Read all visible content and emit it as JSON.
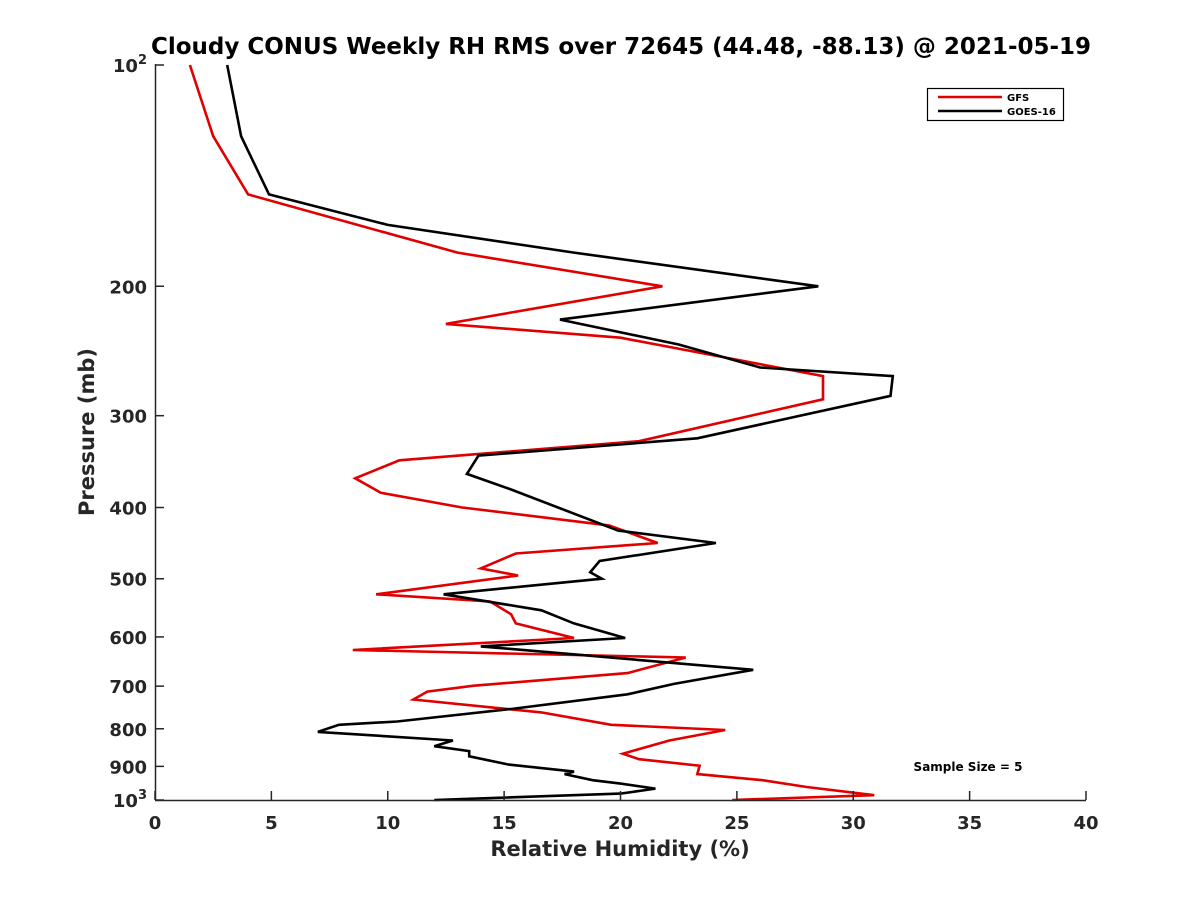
{
  "chart_data": {
    "type": "line",
    "title": "Cloudy CONUS Weekly RH RMS over 72645 (44.48, -88.13) @ 2021-05-19",
    "xlabel": "Relative Humidity (%)",
    "ylabel": "Pressure (mb)",
    "xlim": [
      0,
      40
    ],
    "ylim": [
      100,
      1000
    ],
    "y_scale": "log",
    "y_reversed": true,
    "grid": false,
    "legend_position": "top-right",
    "x_ticks": [
      "0",
      "5",
      "10",
      "15",
      "20",
      "25",
      "30",
      "35",
      "40"
    ],
    "y_ticks": [
      {
        "value": 100,
        "base": "10",
        "exp": "2"
      },
      {
        "value": 200,
        "label": "200"
      },
      {
        "value": 300,
        "label": "300"
      },
      {
        "value": 400,
        "label": "400"
      },
      {
        "value": 500,
        "label": "500"
      },
      {
        "value": 600,
        "label": "600"
      },
      {
        "value": 700,
        "label": "700"
      },
      {
        "value": 800,
        "label": "800"
      },
      {
        "value": 900,
        "label": "900"
      },
      {
        "value": 1000,
        "base": "10",
        "exp": "3"
      }
    ],
    "annotation": "Sample Size = 5",
    "series": [
      {
        "name": "GFS",
        "color": "#e00000",
        "points": [
          [
            1.5,
            100
          ],
          [
            2.5,
            125
          ],
          [
            4.0,
            150
          ],
          [
            8.7,
            165
          ],
          [
            13.0,
            180
          ],
          [
            21.8,
            200
          ],
          [
            12.5,
            225
          ],
          [
            20.0,
            235
          ],
          [
            28.7,
            265
          ],
          [
            28.7,
            285
          ],
          [
            20.8,
            325
          ],
          [
            10.5,
            345
          ],
          [
            8.6,
            365
          ],
          [
            9.7,
            382
          ],
          [
            13.2,
            400
          ],
          [
            19.5,
            423
          ],
          [
            21.6,
            447
          ],
          [
            15.5,
            462
          ],
          [
            14.0,
            484
          ],
          [
            15.6,
            495
          ],
          [
            9.5,
            525
          ],
          [
            14.4,
            537
          ],
          [
            15.3,
            559
          ],
          [
            15.5,
            575
          ],
          [
            18.0,
            602
          ],
          [
            8.5,
            625
          ],
          [
            22.8,
            640
          ],
          [
            20.3,
            672
          ],
          [
            13.7,
            699
          ],
          [
            11.7,
            712
          ],
          [
            11.1,
            730
          ],
          [
            16.6,
            760
          ],
          [
            19.6,
            790
          ],
          [
            24.5,
            803
          ],
          [
            22.1,
            830
          ],
          [
            20.1,
            865
          ],
          [
            20.8,
            880
          ],
          [
            23.4,
            898
          ],
          [
            23.3,
            922
          ],
          [
            26.1,
            940
          ],
          [
            28.0,
            960
          ],
          [
            30.9,
            985
          ],
          [
            24.8,
            1000
          ]
        ]
      },
      {
        "name": "GOES-16",
        "color": "#000000",
        "points": [
          [
            3.1,
            100
          ],
          [
            3.7,
            125
          ],
          [
            4.9,
            150
          ],
          [
            10.0,
            165
          ],
          [
            18.0,
            180
          ],
          [
            28.5,
            200
          ],
          [
            17.4,
            222
          ],
          [
            22.5,
            240
          ],
          [
            26.0,
            258
          ],
          [
            31.7,
            265
          ],
          [
            31.6,
            282
          ],
          [
            23.3,
            322
          ],
          [
            13.9,
            340
          ],
          [
            13.4,
            360
          ],
          [
            15.3,
            378
          ],
          [
            19.9,
            430
          ],
          [
            24.1,
            447
          ],
          [
            19.1,
            473
          ],
          [
            18.7,
            490
          ],
          [
            19.2,
            500
          ],
          [
            12.4,
            525
          ],
          [
            16.6,
            552
          ],
          [
            18.0,
            575
          ],
          [
            20.2,
            602
          ],
          [
            14.0,
            618
          ],
          [
            25.7,
            665
          ],
          [
            22.3,
            695
          ],
          [
            20.3,
            718
          ],
          [
            15.3,
            752
          ],
          [
            10.4,
            782
          ],
          [
            7.9,
            790
          ],
          [
            7.0,
            808
          ],
          [
            12.8,
            830
          ],
          [
            12.0,
            845
          ],
          [
            13.5,
            858
          ],
          [
            13.5,
            872
          ],
          [
            15.2,
            895
          ],
          [
            18.0,
            915
          ],
          [
            17.6,
            922
          ],
          [
            18.8,
            940
          ],
          [
            20.0,
            950
          ],
          [
            21.5,
            965
          ],
          [
            20.0,
            980
          ],
          [
            12.0,
            1000
          ]
        ]
      }
    ]
  }
}
